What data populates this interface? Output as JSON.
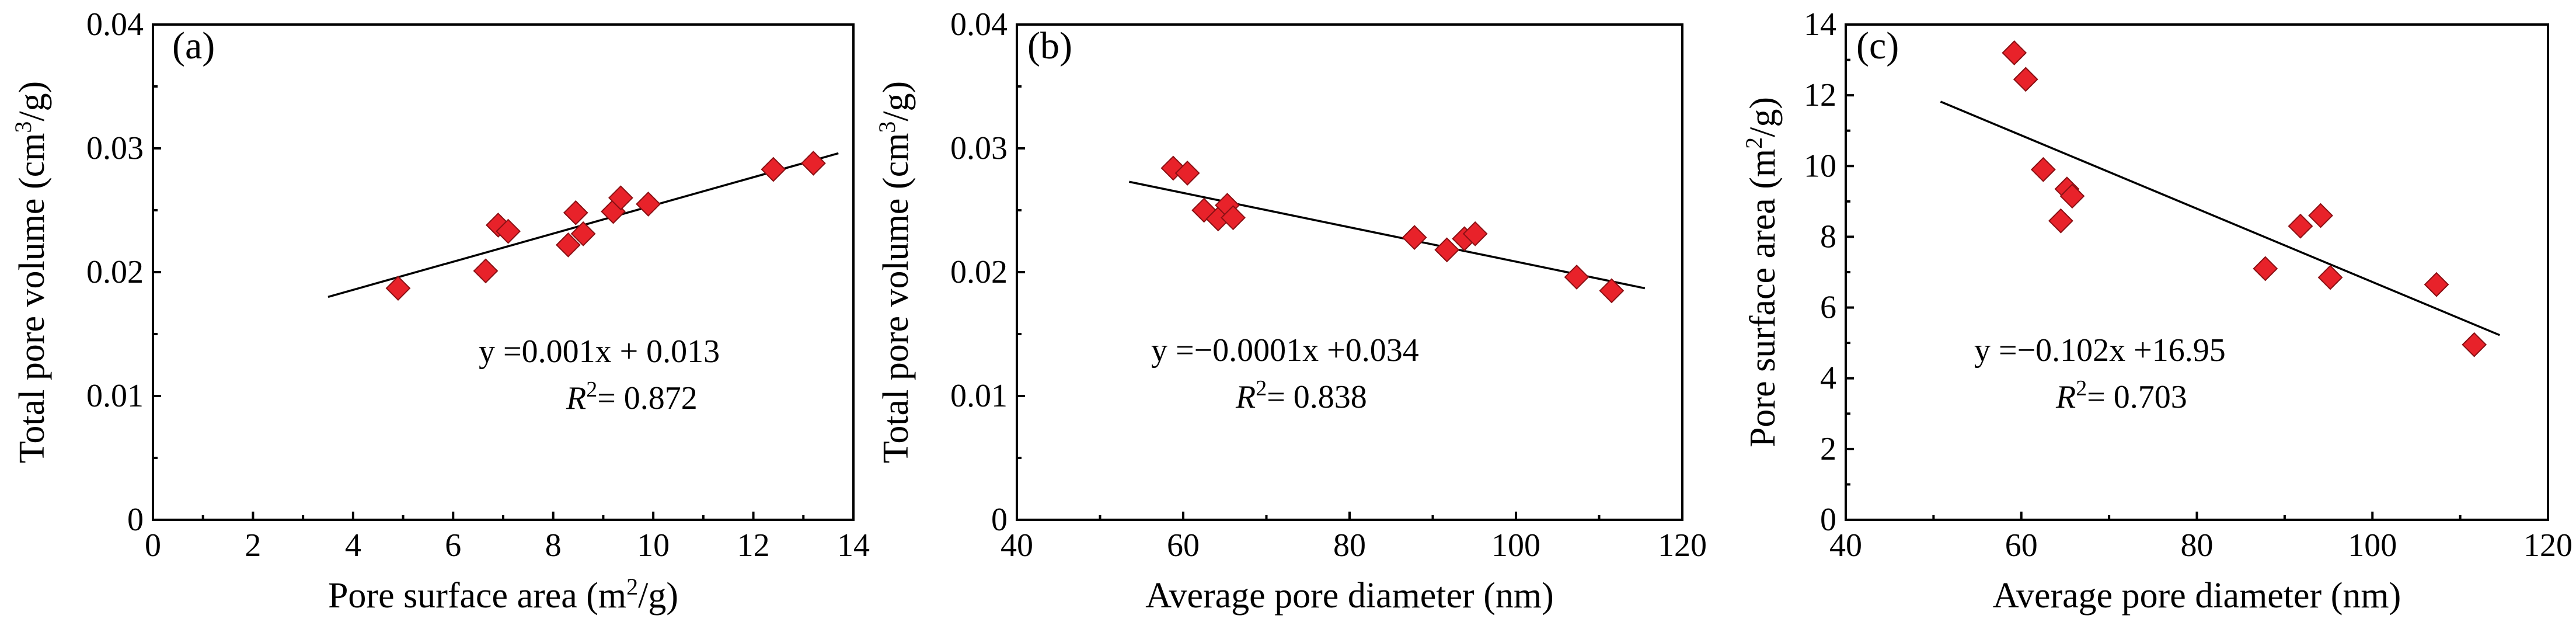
{
  "figure": {
    "background": "#ffffff",
    "marker_color": "#e8222a",
    "marker_edge": "#8a1014"
  },
  "chart_data": [
    {
      "type": "scatter",
      "panel_label": "(a)",
      "xlabel": {
        "main": "Pore surface area (m",
        "sup": "2",
        "tail": "/g)"
      },
      "ylabel": {
        "main": "Total pore volume (cm",
        "sup": "3",
        "tail": "/g)"
      },
      "xlim": [
        0,
        14
      ],
      "ylim": [
        0,
        0.04
      ],
      "xticks": [
        0,
        2,
        4,
        6,
        8,
        10,
        12,
        14
      ],
      "xtick_labels": [
        "0",
        "2",
        "4",
        "6",
        "8",
        "10",
        "12",
        "14"
      ],
      "yticks": [
        0,
        0.01,
        0.02,
        0.03,
        0.04
      ],
      "ytick_labels": [
        "0",
        "0.01",
        "0.02",
        "0.03",
        "0.04"
      ],
      "points": [
        {
          "x": 4.9,
          "y": 0.0187
        },
        {
          "x": 6.65,
          "y": 0.0201
        },
        {
          "x": 6.9,
          "y": 0.0238
        },
        {
          "x": 7.1,
          "y": 0.0233
        },
        {
          "x": 8.3,
          "y": 0.0222
        },
        {
          "x": 8.45,
          "y": 0.0248
        },
        {
          "x": 8.6,
          "y": 0.0231
        },
        {
          "x": 9.2,
          "y": 0.0249
        },
        {
          "x": 9.35,
          "y": 0.026
        },
        {
          "x": 9.9,
          "y": 0.0255
        },
        {
          "x": 12.4,
          "y": 0.0283
        },
        {
          "x": 13.2,
          "y": 0.0288
        }
      ],
      "fit": {
        "x": [
          3.5,
          13.7
        ],
        "y": [
          0.018,
          0.0296
        ]
      },
      "equation": "y =0.001x + 0.013",
      "r2": {
        "R": "R",
        "sup": "2",
        "rest": "= 0.872"
      }
    },
    {
      "type": "scatter",
      "panel_label": "(b)",
      "xlabel": {
        "main": "Average pore diameter (nm)",
        "sup": "",
        "tail": ""
      },
      "ylabel": {
        "main": "Total pore volume (cm",
        "sup": "3",
        "tail": "/g)"
      },
      "xlim": [
        40,
        120
      ],
      "ylim": [
        0,
        0.04
      ],
      "xticks": [
        40,
        60,
        80,
        100,
        120
      ],
      "xtick_labels": [
        "40",
        "60",
        "80",
        "100",
        "120"
      ],
      "yticks": [
        0,
        0.01,
        0.02,
        0.03,
        0.04
      ],
      "ytick_labels": [
        "0",
        "0.01",
        "0.02",
        "0.03",
        "0.04"
      ],
      "points": [
        {
          "x": 58.8,
          "y": 0.0284
        },
        {
          "x": 60.5,
          "y": 0.028
        },
        {
          "x": 62.5,
          "y": 0.025
        },
        {
          "x": 64.2,
          "y": 0.0243
        },
        {
          "x": 65.3,
          "y": 0.0254
        },
        {
          "x": 66.0,
          "y": 0.0244
        },
        {
          "x": 87.8,
          "y": 0.0228
        },
        {
          "x": 91.7,
          "y": 0.0218
        },
        {
          "x": 93.8,
          "y": 0.0227
        },
        {
          "x": 95.1,
          "y": 0.0231
        },
        {
          "x": 107.3,
          "y": 0.0196
        },
        {
          "x": 111.5,
          "y": 0.0185
        }
      ],
      "fit": {
        "x": [
          53.5,
          115.5
        ],
        "y": [
          0.0273,
          0.0187
        ]
      },
      "equation": "y =−0.0001x +0.034",
      "r2": {
        "R": "R",
        "sup": "2",
        "rest": "= 0.838"
      }
    },
    {
      "type": "scatter",
      "panel_label": "(c)",
      "xlabel": {
        "main": "Average pore diameter (nm)",
        "sup": "",
        "tail": ""
      },
      "ylabel": {
        "main": "Pore surface area (m",
        "sup": "2",
        "tail": "/g)"
      },
      "xlim": [
        40,
        120
      ],
      "ylim": [
        0,
        14
      ],
      "xticks": [
        40,
        60,
        80,
        100,
        120
      ],
      "xtick_labels": [
        "40",
        "60",
        "80",
        "100",
        "120"
      ],
      "yticks": [
        0,
        2,
        4,
        6,
        8,
        10,
        12,
        14
      ],
      "ytick_labels": [
        "0",
        "2",
        "4",
        "6",
        "8",
        "10",
        "12",
        "14"
      ],
      "points": [
        {
          "x": 59.2,
          "y": 13.2
        },
        {
          "x": 60.5,
          "y": 12.45
        },
        {
          "x": 62.5,
          "y": 9.9
        },
        {
          "x": 64.5,
          "y": 8.45
        },
        {
          "x": 65.2,
          "y": 9.35
        },
        {
          "x": 65.8,
          "y": 9.15
        },
        {
          "x": 87.8,
          "y": 7.1
        },
        {
          "x": 91.8,
          "y": 8.3
        },
        {
          "x": 94.1,
          "y": 8.6
        },
        {
          "x": 95.2,
          "y": 6.85
        },
        {
          "x": 107.3,
          "y": 6.65
        },
        {
          "x": 111.6,
          "y": 4.95
        }
      ],
      "fit": {
        "x": [
          50.8,
          114.5
        ],
        "y": [
          11.82,
          5.22
        ]
      },
      "equation": "y =−0.102x +16.95",
      "r2": {
        "R": "R",
        "sup": "2",
        "rest": "= 0.703"
      }
    }
  ]
}
